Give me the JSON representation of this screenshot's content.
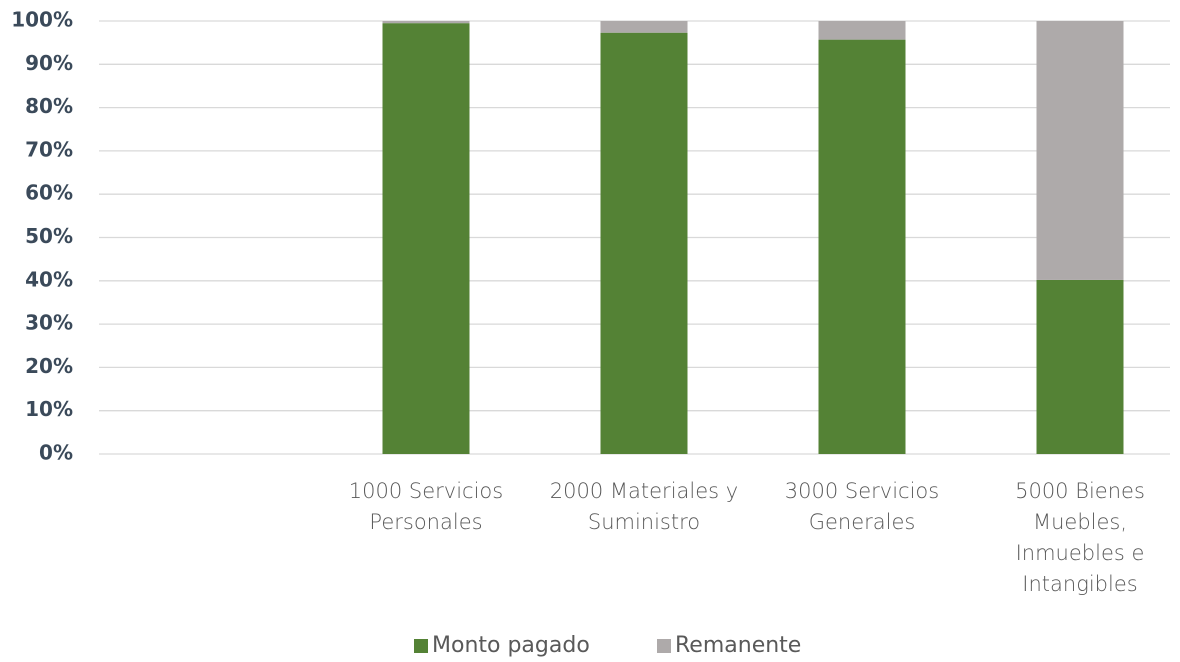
{
  "chart_data": {
    "type": "stacked_bar",
    "categories": [
      null,
      "1000 Servicios\nPersonales",
      "2000 Materiales y\nSuministro",
      "3000 Servicios\nGenerales",
      "5000 Bienes\nMuebles,\nInmuebles e\nIntangibles"
    ],
    "series": [
      {
        "name": "Monto pagado",
        "color": "#548235",
        "values": [
          null,
          99.5,
          97.3,
          95.7,
          40.2
        ]
      },
      {
        "name": "Remanente",
        "color": "#aeaaaa",
        "values": [
          null,
          0.5,
          2.7,
          4.3,
          59.8
        ]
      }
    ],
    "ylim": [
      0,
      100
    ],
    "yticks": [
      {
        "value": 0,
        "label": "0%"
      },
      {
        "value": 10,
        "label": "10%"
      },
      {
        "value": 20,
        "label": "20%"
      },
      {
        "value": 30,
        "label": "30%"
      },
      {
        "value": 40,
        "label": "40%"
      },
      {
        "value": 50,
        "label": "50%"
      },
      {
        "value": 60,
        "label": "60%"
      },
      {
        "value": 70,
        "label": "70%"
      },
      {
        "value": 80,
        "label": "80%"
      },
      {
        "value": 90,
        "label": "90%"
      },
      {
        "value": 100,
        "label": "100%"
      }
    ],
    "grid": true,
    "legend": "bottom"
  }
}
